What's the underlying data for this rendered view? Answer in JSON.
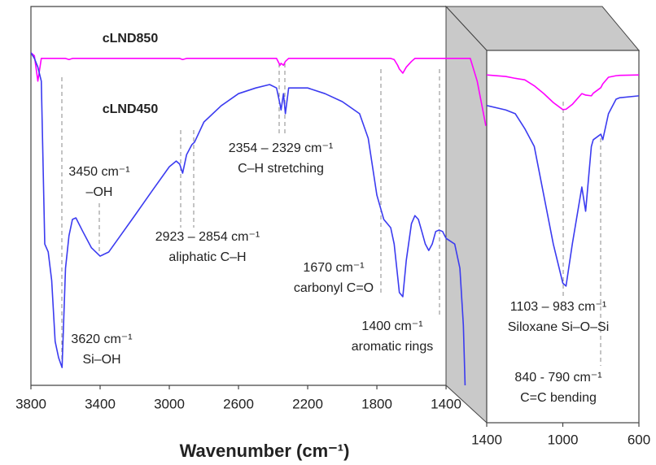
{
  "chart_data": [
    {
      "type": "line",
      "x": [
        3800,
        3780,
        3760,
        3740,
        3720,
        3700,
        3680,
        3660,
        3640,
        3620,
        3600,
        3580,
        3560,
        3540,
        3500,
        3450,
        3400,
        3350,
        3300,
        3200,
        3100,
        3000,
        2960,
        2940,
        2923,
        2900,
        2870,
        2854,
        2800,
        2700,
        2600,
        2500,
        2420,
        2380,
        2360,
        2354,
        2340,
        2329,
        2310,
        2200,
        2100,
        2000,
        1900,
        1850,
        1800,
        1760,
        1720,
        1700,
        1680,
        1670,
        1650,
        1630,
        1600,
        1580,
        1560,
        1540,
        1520,
        1500,
        1480,
        1460,
        1440,
        1420,
        1400,
        1350,
        1320,
        1300,
        1290,
        1260,
        1220,
        1170
      ],
      "series": [
        {
          "name": "cLND850",
          "color": "#ff00ff",
          "values": [
            87.8,
            87.0,
            80.3,
            86.3,
            86.3,
            86.3,
            86.3,
            86.3,
            86.3,
            86.3,
            86.3,
            86.0,
            86.3,
            86.3,
            86.3,
            86.3,
            86.3,
            86.3,
            86.3,
            86.3,
            86.3,
            86.3,
            86.3,
            86.3,
            86.0,
            86.3,
            86.3,
            86.3,
            86.3,
            86.3,
            86.3,
            86.3,
            86.3,
            86.3,
            84.5,
            85.0,
            84.5,
            85.5,
            86.3,
            86.3,
            86.3,
            86.3,
            86.3,
            86.3,
            86.3,
            86.3,
            86.3,
            86.0,
            84.5,
            83.5,
            82.4,
            84.0,
            85.5,
            86.3,
            86.3,
            86.3,
            86.3,
            86.3,
            86.3,
            86.3,
            86.3,
            86.3,
            86.3,
            86.3,
            86.3,
            86.3,
            86.3,
            86.3,
            80.3,
            68.5
          ]
        },
        {
          "name": "cLND450",
          "color": "#3b3bf0",
          "values": [
            87.8,
            86.3,
            84,
            80.3,
            37.3,
            35.2,
            27.7,
            11.6,
            7.3,
            4.7,
            30.9,
            39.5,
            43.8,
            44.2,
            40.6,
            36.3,
            34.1,
            35.2,
            38.4,
            44.8,
            51.3,
            57.7,
            59.2,
            58.4,
            56.0,
            60.9,
            63.5,
            64.2,
            69.5,
            73.8,
            77.0,
            78.5,
            79.4,
            78.5,
            74.2,
            72.7,
            77.0,
            71.7,
            78.5,
            78.5,
            77.0,
            74.9,
            71.7,
            65.2,
            50.2,
            43.8,
            41.6,
            37.3,
            28.8,
            24.5,
            23.4,
            33.0,
            42.7,
            44.8,
            43.8,
            40.6,
            37.3,
            35.6,
            37.3,
            40.6,
            41.0,
            40.6,
            38.8,
            37.3,
            30.9,
            15.9,
            0,
            null,
            null,
            null
          ]
        }
      ],
      "xlim": [
        3800,
        1165
      ],
      "xticks": [
        3800,
        3400,
        3000,
        2600,
        2200,
        1800,
        1400
      ],
      "ylim": [
        0,
        100
      ],
      "xlabel": "Wavenumber (cm⁻¹)",
      "annotations": [
        [
          "3450 cm⁻¹",
          "–OH"
        ],
        [
          "2923 – 2854 cm⁻¹",
          "aliphatic C–H"
        ],
        [
          "2354 – 2329 cm⁻¹",
          "C–H stretching"
        ],
        [
          "1670 cm⁻¹",
          "carbonyl C=O"
        ],
        [
          "3620 cm⁻¹",
          "Si–OH"
        ],
        [
          "1400 cm⁻¹",
          "aromatic rings"
        ]
      ]
    },
    {
      "type": "line",
      "x": [
        1400,
        1300,
        1250,
        1200,
        1150,
        1100,
        1050,
        1000,
        983,
        950,
        900,
        880,
        850,
        840,
        800,
        790,
        760,
        720,
        700,
        600
      ],
      "series": [
        {
          "name": "cLND850",
          "color": "#ff00ff",
          "values": [
            93.4,
            93.0,
            92.5,
            92.1,
            90.5,
            88.4,
            86.0,
            84.1,
            84.2,
            85.5,
            88.4,
            88.0,
            87.8,
            88.5,
            90.0,
            91.0,
            92.8,
            93.2,
            93.3,
            93.4
          ]
        },
        {
          "name": "cLND450",
          "color": "#3b3bf0",
          "values": [
            85.2,
            84,
            83.0,
            79,
            74.2,
            61.1,
            48.0,
            37.5,
            36.7,
            48.0,
            63.3,
            56.8,
            74.2,
            76.0,
            77.5,
            76.0,
            83.0,
            86.9,
            87.3,
            87.8
          ]
        }
      ],
      "xlim": [
        1400,
        600
      ],
      "xticks": [
        1400,
        1000,
        600
      ],
      "ylim": [
        0,
        100
      ],
      "annotations": [
        [
          "1103 – 983 cm⁻¹",
          "Siloxane Si–O–Si"
        ],
        [
          "840 - 790 cm⁻¹",
          "C=C bending"
        ]
      ]
    }
  ]
}
